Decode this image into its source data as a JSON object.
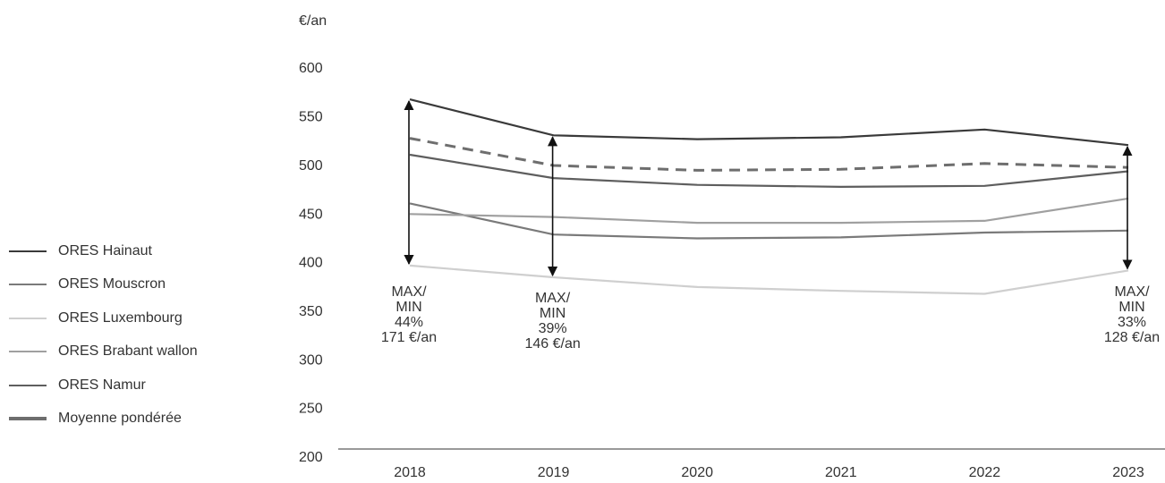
{
  "chart_data": {
    "type": "line",
    "ylabel": "€/an",
    "x": [
      "2018",
      "2019",
      "2020",
      "2021",
      "2022",
      "2023"
    ],
    "ylim": [
      200,
      600
    ],
    "yticks": [
      200,
      250,
      300,
      350,
      400,
      450,
      500,
      550,
      600
    ],
    "grid": false,
    "legend_position": "left",
    "series": [
      {
        "name": "ORES Hainaut",
        "color": "#3a3a3a",
        "style": "solid",
        "values": [
          567,
          530,
          526,
          528,
          536,
          520
        ]
      },
      {
        "name": "ORES Mouscron",
        "color": "#7a7a7a",
        "style": "solid",
        "values": [
          460,
          428,
          424,
          425,
          430,
          432
        ]
      },
      {
        "name": "ORES Luxembourg",
        "color": "#cfcfcf",
        "style": "solid",
        "values": [
          396,
          384,
          374,
          370,
          367,
          391
        ]
      },
      {
        "name": "ORES Brabant wallon",
        "color": "#a0a0a0",
        "style": "solid",
        "values": [
          449,
          446,
          440,
          440,
          442,
          465
        ]
      },
      {
        "name": "ORES Namur",
        "color": "#5e5e5e",
        "style": "solid",
        "values": [
          510,
          486,
          479,
          477,
          478,
          493
        ]
      },
      {
        "name": "Moyenne pondérée",
        "color": "#6e6e6e",
        "style": "dashed",
        "values": [
          527,
          499,
          494,
          495,
          501,
          497
        ]
      }
    ],
    "annotations": [
      {
        "x": "2018",
        "y_max": 567,
        "y_min": 396,
        "lines": [
          "MAX/",
          "MIN",
          "44%",
          "171 €/an"
        ]
      },
      {
        "x": "2019",
        "y_max": 530,
        "y_min": 384,
        "lines": [
          "MAX/",
          "MIN",
          "39%",
          "146 €/an"
        ]
      },
      {
        "x": "2023",
        "y_max": 520,
        "y_min": 391,
        "lines": [
          "MAX/",
          "MIN",
          "33%",
          "128 €/an"
        ]
      }
    ]
  }
}
